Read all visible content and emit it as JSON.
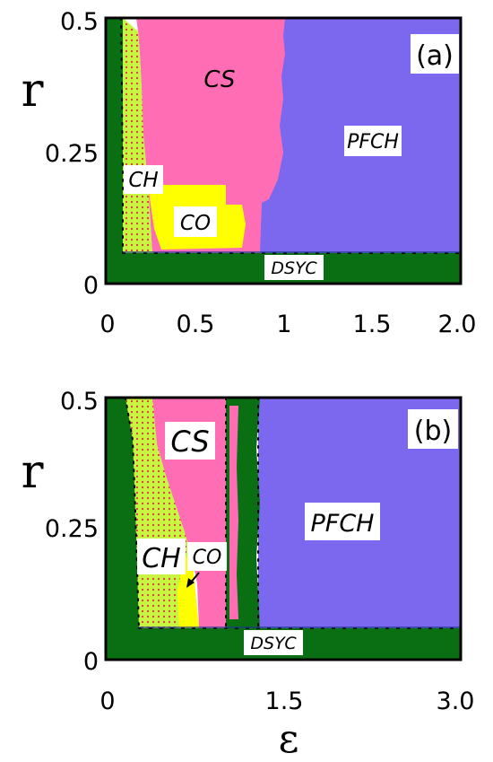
{
  "chart_data": [
    {
      "type": "heatmap",
      "panel_label": "(a)",
      "xlabel": "",
      "ylabel": "r",
      "xlim": [
        0,
        2.0
      ],
      "ylim": [
        0,
        0.5
      ],
      "x_ticks": [
        "0",
        "0.5",
        "1",
        "1.5",
        "2.0"
      ],
      "y_ticks": [
        "0",
        "0.25",
        "0.5"
      ],
      "regions": [
        {
          "name": "DSYC",
          "color": "#0a6e12"
        },
        {
          "name": "CH",
          "color": "#c8f542"
        },
        {
          "name": "CS",
          "color": "#ff6eb4"
        },
        {
          "name": "CO",
          "color": "#ffff00"
        },
        {
          "name": "PFCH",
          "color": "#7b68ee"
        }
      ],
      "labels": [
        "CS",
        "PFCH",
        "CH",
        "CO",
        "DSYC"
      ]
    },
    {
      "type": "heatmap",
      "panel_label": "(b)",
      "xlabel": "ε",
      "ylabel": "r",
      "xlim": [
        0,
        3.0
      ],
      "ylim": [
        0,
        0.5
      ],
      "x_ticks": [
        "0",
        "1.5",
        "3.0"
      ],
      "y_ticks": [
        "0",
        "0.25",
        "0.5"
      ],
      "regions": [
        {
          "name": "DSYC",
          "color": "#0a6e12"
        },
        {
          "name": "CH",
          "color": "#c8f542"
        },
        {
          "name": "CS",
          "color": "#ff6eb4"
        },
        {
          "name": "CO",
          "color": "#ffff00"
        },
        {
          "name": "PFCH",
          "color": "#7b68ee"
        }
      ],
      "labels": [
        "CS",
        "PFCH",
        "CH",
        "CO",
        "DSYC"
      ]
    }
  ]
}
